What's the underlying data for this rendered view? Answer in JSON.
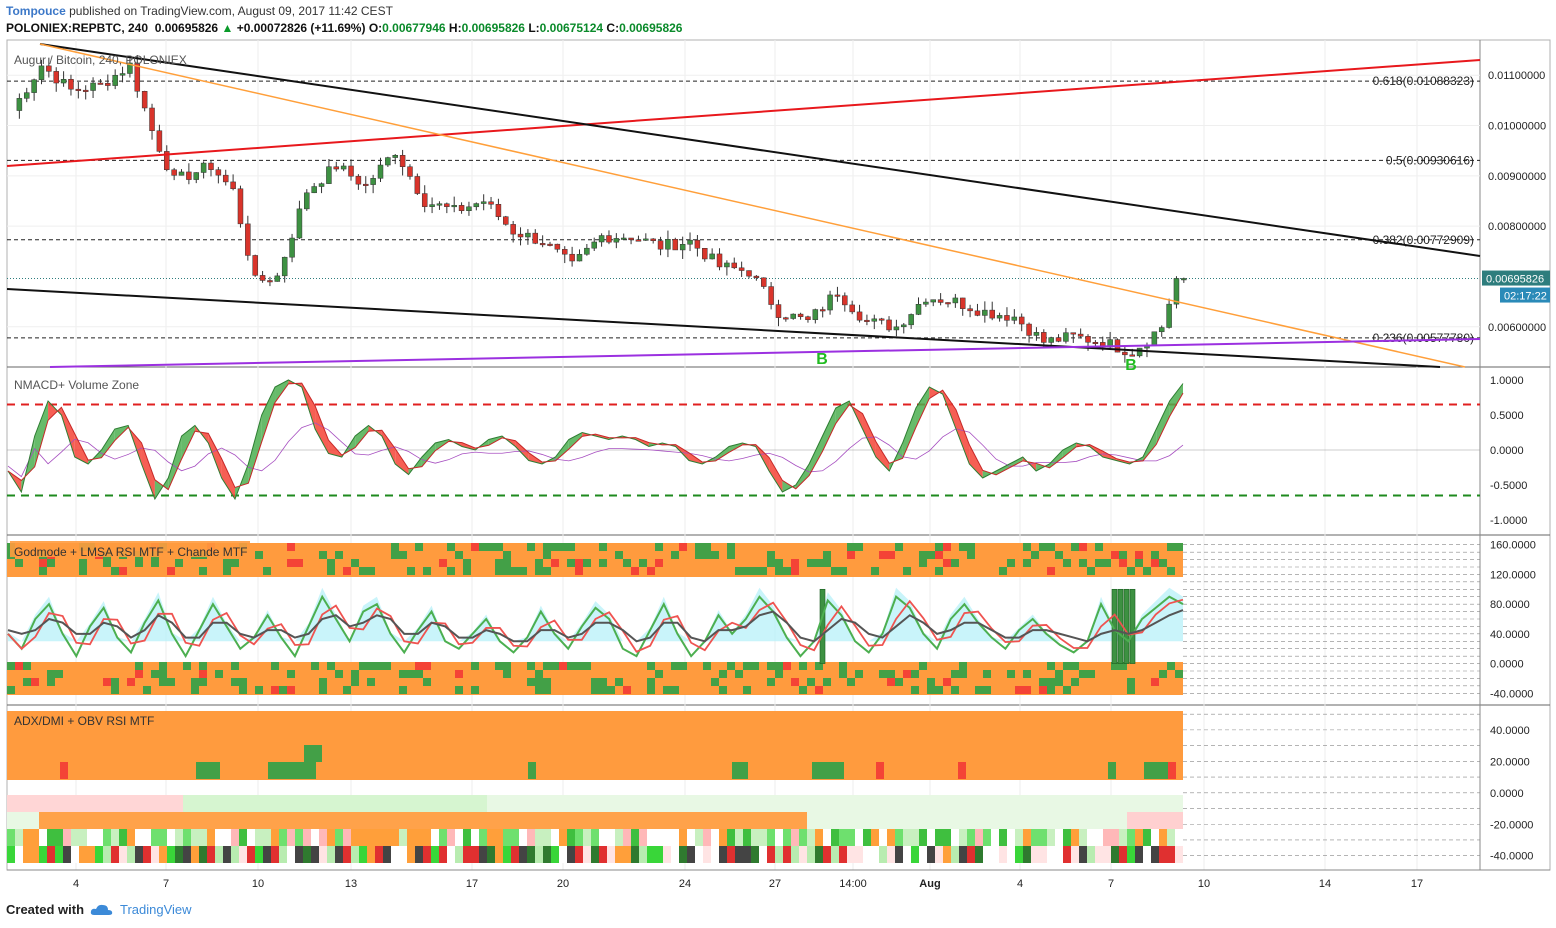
{
  "header": {
    "author": "Tompouce",
    "published_text": "published on TradingView.com, August 09, 2017 11:42 CEST",
    "symbol": "POLONIEX:REPBTC, 240",
    "last": "0.00695826",
    "change": "+0.00072826 (+11.69%)",
    "o_label": "O:",
    "o_value": "0.00677946",
    "h_label": "H:",
    "h_value": "0.00695826",
    "l_label": "L:",
    "l_value": "0.00675124",
    "c_label": "C:",
    "c_value": "0.00695826"
  },
  "colors": {
    "up": "#3d9142",
    "down": "#d9342b",
    "orange": "#ff9f3a",
    "red_line": "#e8181c",
    "purple": "#9b30e0",
    "fib_black": "#222222",
    "price_tag": "#2e7d7d",
    "time_tag": "#2a8ab8",
    "zone_orange": "#ff9b3e",
    "zone_green": "#43a047",
    "zone_red": "#f44336"
  },
  "price_pane": {
    "title": "Augur / Bitcoin, 240, POLONIEX",
    "fib_labels": [
      "0.618(0.01088323)",
      "0.5(0.00930616)",
      "0.382(0.00772909)",
      "0.236(0.00577780)"
    ],
    "current_price_tag": "0.00695826",
    "countdown_tag": "02:17:22",
    "markers": [
      "B",
      "B"
    ]
  },
  "chart_data": [
    {
      "type": "candlestick",
      "title": "Augur / Bitcoin, 240, POLONIEX",
      "y_ticks": [
        "0.01100000",
        "0.01000000",
        "0.00900000",
        "0.00800000",
        "0.00600000"
      ],
      "ylim": [
        0.0052,
        0.0117
      ],
      "x_ticks": [
        "4",
        "7",
        "10",
        "13",
        "17",
        "20",
        "24",
        "27",
        "14:00",
        "Aug",
        "4",
        "7",
        "10",
        "14",
        "17"
      ],
      "close_path": [
        [
          0,
          0.0103
        ],
        [
          4,
          0.0112
        ],
        [
          8,
          0.0107
        ],
        [
          12,
          0.0108
        ],
        [
          16,
          0.0112
        ],
        [
          19,
          0.0099
        ],
        [
          22,
          0.0089
        ],
        [
          27,
          0.0092
        ],
        [
          30,
          0.0087
        ],
        [
          33,
          0.0069
        ],
        [
          36,
          0.007
        ],
        [
          40,
          0.0087
        ],
        [
          44,
          0.0092
        ],
        [
          48,
          0.0088
        ],
        [
          52,
          0.0095
        ],
        [
          56,
          0.0085
        ],
        [
          60,
          0.0083
        ],
        [
          64,
          0.0085
        ],
        [
          68,
          0.0079
        ],
        [
          72,
          0.0077
        ],
        [
          76,
          0.0072
        ],
        [
          80,
          0.0078
        ],
        [
          84,
          0.0078
        ],
        [
          88,
          0.0076
        ],
        [
          92,
          0.0077
        ],
        [
          96,
          0.0072
        ],
        [
          100,
          0.0071
        ],
        [
          104,
          0.0063
        ],
        [
          108,
          0.0061
        ],
        [
          112,
          0.0067
        ],
        [
          116,
          0.0061
        ],
        [
          120,
          0.006
        ],
        [
          124,
          0.0066
        ],
        [
          128,
          0.0065
        ],
        [
          132,
          0.0063
        ],
        [
          136,
          0.0062
        ],
        [
          140,
          0.0057
        ],
        [
          144,
          0.0058
        ],
        [
          148,
          0.0057
        ],
        [
          152,
          0.0055
        ],
        [
          156,
          0.006
        ],
        [
          158,
          0.00696
        ]
      ],
      "fib_levels": [
        0.01088323,
        0.00930616,
        0.00772909,
        0.0057778
      ],
      "current_price": 0.00695826,
      "lines": [
        "descending black channel top",
        "descending black channel bottom",
        "orange descending trendline",
        "red ascending trendline",
        "purple ascending support"
      ]
    },
    {
      "type": "line",
      "title": "NMACD+ Volume Zone",
      "y_ticks": [
        "1.0000",
        "0.5000",
        "0.0000",
        "-0.5000",
        "-1.0000"
      ],
      "ylim": [
        -1.1,
        1.1
      ],
      "levels": [
        0.65,
        0,
        -0.65
      ],
      "series": [
        {
          "name": "",
          "values": [
            -0.3,
            -0.6,
            0.2,
            0.7,
            0.5,
            -0.1,
            -0.2,
            0.0,
            0.3,
            0.35,
            -0.2,
            -0.7,
            -0.4,
            0.2,
            0.35,
            0.1,
            -0.4,
            -0.7,
            -0.2,
            0.5,
            0.9,
            1.0,
            0.9,
            0.3,
            -0.05,
            -0.1,
            0.2,
            0.35,
            0.2,
            -0.2,
            -0.35,
            -0.1,
            0.1,
            0.15,
            0.05,
            0.0,
            0.15,
            0.2,
            0.05,
            -0.15,
            -0.2,
            -0.1,
            0.15,
            0.25,
            0.2,
            0.15,
            0.2,
            0.15,
            0.05,
            0.1,
            0.05,
            -0.15,
            -0.2,
            -0.1,
            0.05,
            0.1,
            0.05,
            -0.3,
            -0.6,
            -0.5,
            -0.2,
            0.2,
            0.6,
            0.7,
            0.3,
            -0.1,
            -0.3,
            0.1,
            0.6,
            0.9,
            0.8,
            0.3,
            -0.2,
            -0.4,
            -0.3,
            -0.2,
            -0.1,
            -0.3,
            -0.2,
            0.0,
            0.1,
            0.05,
            -0.1,
            -0.15,
            -0.2,
            -0.1,
            0.3,
            0.7,
            0.95
          ]
        }
      ]
    },
    {
      "type": "line",
      "title": "Godmode + LMSA RSI MTF + Chande MTF",
      "y_ticks": [
        "160.0000",
        "120.0000",
        "80.0000",
        "40.0000",
        "0.0000",
        "-40.0000"
      ],
      "ylim": [
        -45,
        165
      ],
      "series": [
        {
          "name": "",
          "values": [
            40,
            20,
            60,
            80,
            40,
            10,
            50,
            75,
            35,
            15,
            55,
            85,
            40,
            10,
            45,
            80,
            50,
            20,
            35,
            65,
            35,
            10,
            50,
            90,
            60,
            30,
            70,
            80,
            40,
            15,
            45,
            70,
            30,
            20,
            40,
            60,
            30,
            15,
            35,
            70,
            40,
            20,
            50,
            75,
            60,
            20,
            10,
            45,
            80,
            40,
            10,
            30,
            65,
            40,
            60,
            90,
            70,
            35,
            10,
            30,
            85,
            65,
            30,
            15,
            40,
            90,
            75,
            40,
            20,
            60,
            80,
            55,
            35,
            20,
            45,
            60,
            40,
            25,
            15,
            30,
            80,
            45,
            30,
            60,
            75,
            90,
            80
          ]
        },
        {
          "name": "",
          "values": [
            45,
            40,
            45,
            60,
            55,
            40,
            40,
            55,
            50,
            35,
            45,
            65,
            55,
            35,
            35,
            55,
            55,
            40,
            35,
            45,
            45,
            35,
            40,
            60,
            65,
            50,
            55,
            65,
            60,
            40,
            40,
            55,
            50,
            35,
            35,
            45,
            40,
            30,
            30,
            45,
            45,
            35,
            40,
            55,
            55,
            45,
            30,
            35,
            55,
            55,
            35,
            30,
            45,
            45,
            50,
            65,
            70,
            55,
            35,
            30,
            45,
            60,
            55,
            40,
            35,
            50,
            65,
            55,
            40,
            45,
            55,
            55,
            45,
            35,
            35,
            45,
            45,
            40,
            35,
            30,
            40,
            45,
            40,
            45,
            55,
            65,
            72
          ]
        }
      ]
    },
    {
      "type": "heatmap",
      "title": "ADX/DMI + OBV RSI MTF",
      "y_ticks": [
        "40.0000",
        "20.0000",
        "0.0000",
        "-20.0000",
        "-40.0000"
      ],
      "ylim": [
        -44,
        52
      ]
    }
  ],
  "footer": {
    "created_with": "Created with",
    "brand": "TradingView"
  }
}
